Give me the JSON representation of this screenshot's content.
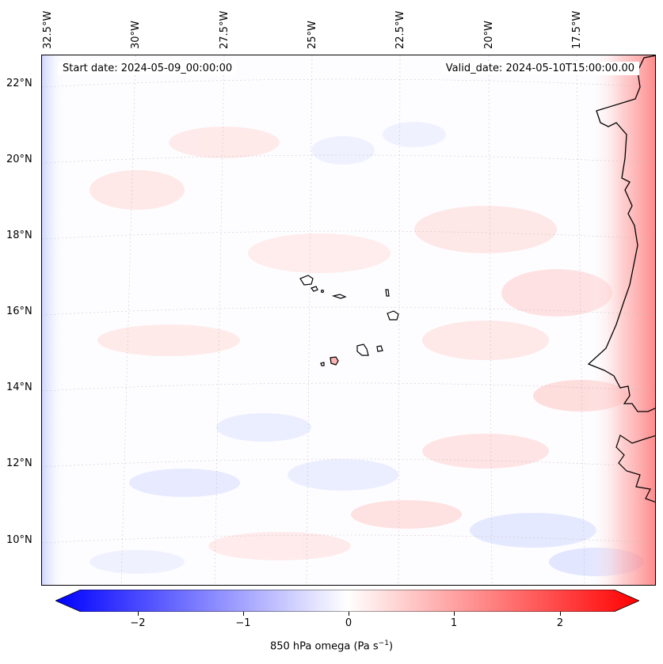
{
  "map": {
    "start_date": "Start date: 2024-05-09_00:00:00",
    "valid_date": "Valid_date: 2024-05-10T15:00:00.00",
    "lon_labels": [
      "32.5°W",
      "30°W",
      "27.5°W",
      "25°W",
      "22.5°W",
      "20°W",
      "17.5°W"
    ],
    "lat_labels": [
      "22°N",
      "20°N",
      "18°N",
      "16°N",
      "14°N",
      "12°N",
      "10°N"
    ]
  },
  "colorbar": {
    "tick_labels": [
      "−2",
      "−1",
      "0",
      "1",
      "2"
    ],
    "title": "850 hPa omega (Pa s",
    "title_sup": "−1",
    "title_end": ")",
    "colors": {
      "neg": "#0000ff",
      "zero": "#ffffff",
      "pos": "#ff0000"
    }
  }
}
